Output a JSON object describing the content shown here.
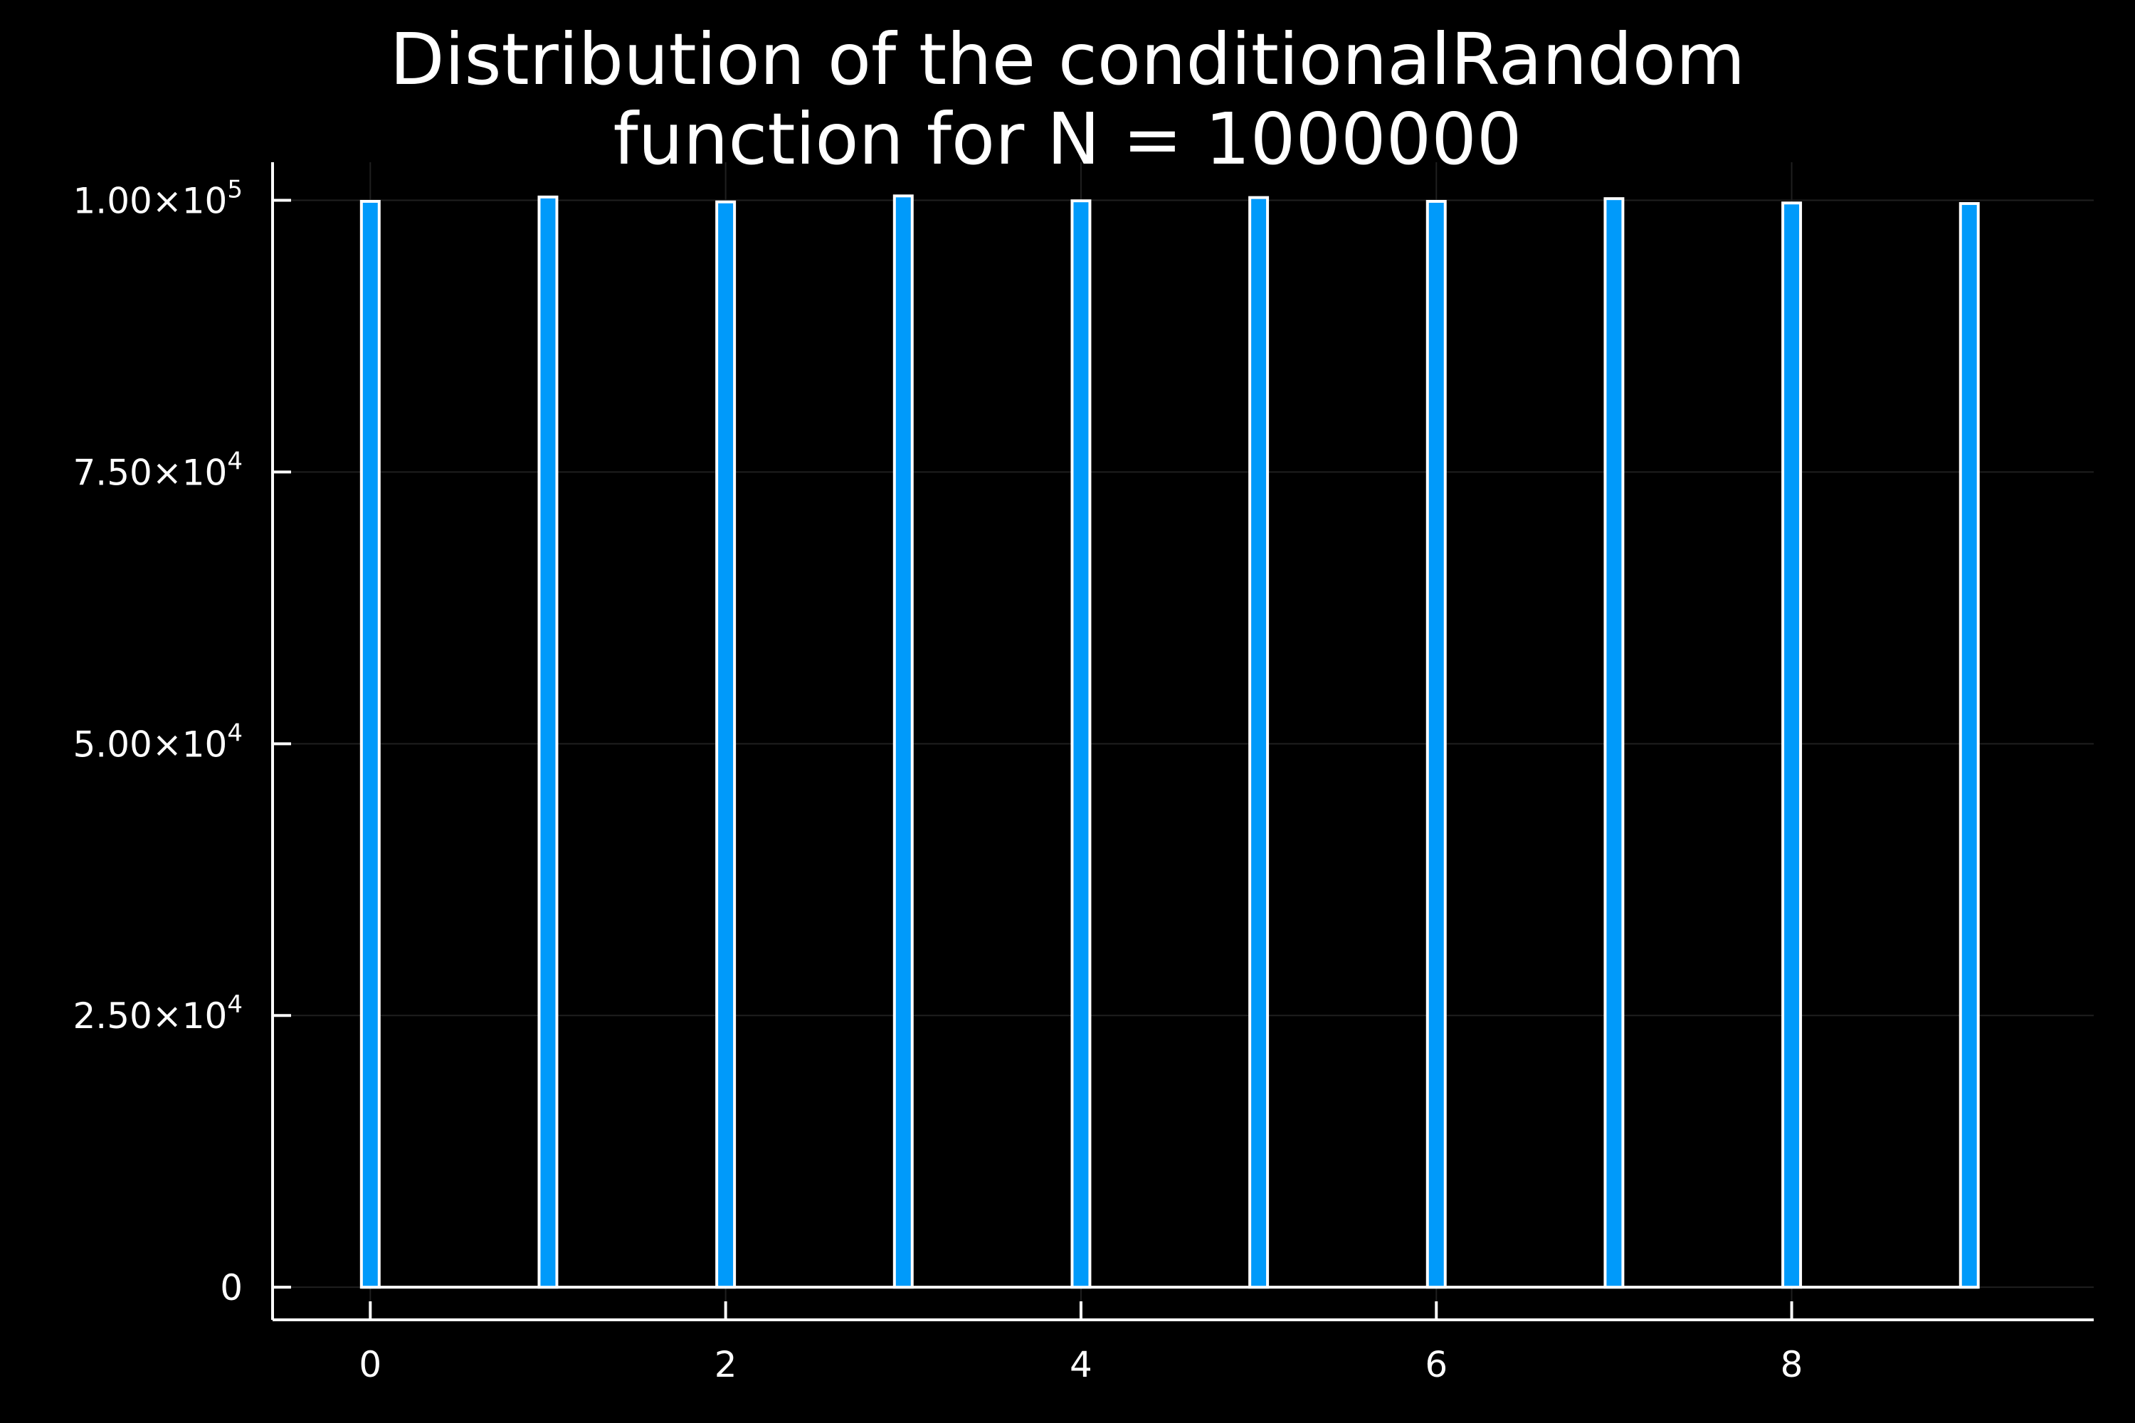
{
  "colors": {
    "background": "#000000",
    "bar_fill": "#009AFA",
    "bar_stroke": "#FFFFFF",
    "axis": "#FFFFFF",
    "grid": "#1F1F1F",
    "text": "#FFFFFF"
  },
  "chart_data": {
    "type": "bar",
    "title": [
      "Distribution of the conditionalRandom",
      "function for N = 1000000"
    ],
    "xlabel": "",
    "ylabel": "",
    "x": [
      0,
      1,
      2,
      3,
      4,
      5,
      6,
      7,
      8,
      9
    ],
    "values": [
      99900,
      100300,
      99850,
      100400,
      99950,
      100250,
      99900,
      100150,
      99750,
      99700
    ],
    "bar_width": 0.1,
    "xlim": [
      -0.55,
      9.7
    ],
    "ylim": [
      -3000,
      103500
    ],
    "x_ticks": [
      {
        "value": 0,
        "label": "0"
      },
      {
        "value": 2,
        "label": "2"
      },
      {
        "value": 4,
        "label": "4"
      },
      {
        "value": 6,
        "label": "6"
      },
      {
        "value": 8,
        "label": "8"
      }
    ],
    "y_ticks": [
      {
        "value": 0,
        "mantissa": "0",
        "exp": ""
      },
      {
        "value": 25000,
        "mantissa": "2.50×10",
        "exp": "4"
      },
      {
        "value": 50000,
        "mantissa": "5.00×10",
        "exp": "4"
      },
      {
        "value": 75000,
        "mantissa": "7.50×10",
        "exp": "4"
      },
      {
        "value": 100000,
        "mantissa": "1.00×10",
        "exp": "5"
      }
    ],
    "grid": true,
    "legend": false
  }
}
